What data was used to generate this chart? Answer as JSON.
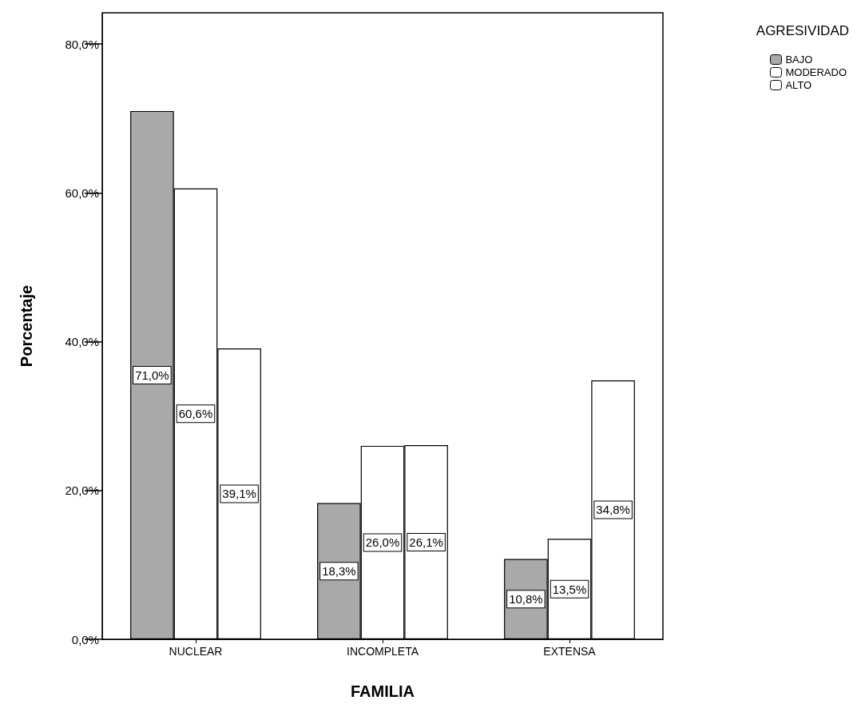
{
  "chart_data": {
    "type": "bar",
    "xlabel": "FAMILIA",
    "ylabel": "Porcentaje",
    "legend_title": "AGRESIVIDAD",
    "legend": "top right",
    "categories": [
      "NUCLEAR",
      "INCOMPLETA",
      "EXTENSA"
    ],
    "series": [
      {
        "name": "BAJO",
        "color": "#a9a9a9",
        "values": [
          71.0,
          18.3,
          10.8
        ],
        "value_labels": [
          "71,0%",
          "18,3%",
          "10,8%"
        ]
      },
      {
        "name": "MODERADO",
        "color": "#ffffff",
        "values": [
          60.6,
          26.0,
          13.5
        ],
        "value_labels": [
          "60,6%",
          "26,0%",
          "13,5%"
        ]
      },
      {
        "name": "ALTO",
        "color": "#ffffff",
        "values": [
          39.1,
          26.1,
          34.8
        ],
        "value_labels": [
          "39,1%",
          "26,1%",
          "34,8%"
        ]
      }
    ],
    "ylim": [
      0,
      84.2
    ],
    "yticks": [
      {
        "value": 0,
        "label": "0,0%"
      },
      {
        "value": 20,
        "label": "20,0%"
      },
      {
        "value": 40,
        "label": "40,0%"
      },
      {
        "value": 60,
        "label": "60,0%"
      },
      {
        "value": 80,
        "label": "80,0%"
      }
    ],
    "grid": false
  }
}
